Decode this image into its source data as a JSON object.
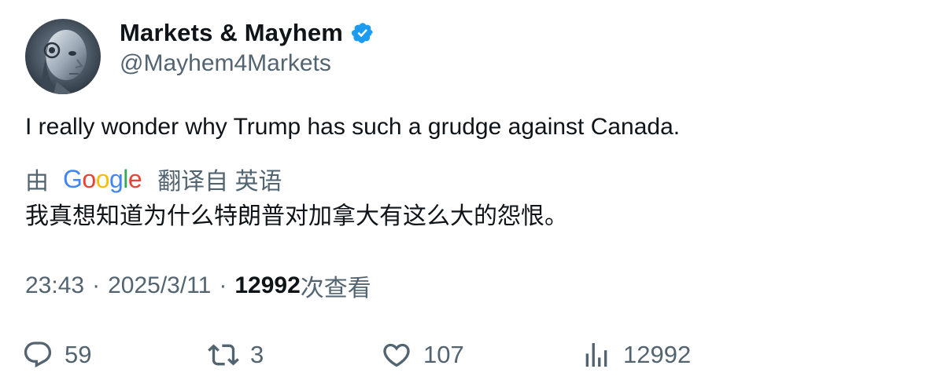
{
  "author": {
    "display_name": "Markets & Mayhem",
    "handle": "@Mayhem4Markets",
    "verified": true,
    "verified_color": "#1d9bf0",
    "avatar_icon": "robot-head-avatar"
  },
  "tweet": {
    "text": "I really wonder why Trump has such a grudge against Canada."
  },
  "translation": {
    "by_label": "由",
    "provider_letters": [
      "G",
      "o",
      "o",
      "g",
      "l",
      "e"
    ],
    "translated_from_label": "翻译自 英语",
    "translated_text": "我真想知道为什么特朗普对加拿大有这么大的怨恨。"
  },
  "meta": {
    "time": "23:43",
    "separator": "·",
    "date": "2025/3/11",
    "views_count": "12992",
    "views_label": "次查看"
  },
  "actions": {
    "replies": "59",
    "retweets": "3",
    "likes": "107",
    "views": "12992"
  },
  "colors": {
    "text_primary": "#0f1419",
    "text_secondary": "#536471",
    "google_blue": "#4285f4",
    "google_red": "#ea4335",
    "google_yellow": "#fbbc05",
    "google_green": "#34a853"
  }
}
